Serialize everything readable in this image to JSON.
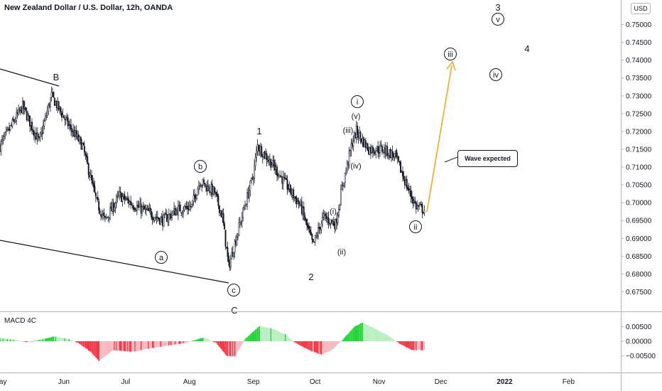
{
  "header": {
    "title": "New Zealand Dollar / U.S. Dollar, 12h, OANDA",
    "currency_badge": "USD"
  },
  "callout": {
    "text": "Wave expected"
  },
  "colors": {
    "candle": "#131722",
    "macd_up": "#22d43a",
    "macd_up_fade": "#b7f0bf",
    "macd_down": "#f23645",
    "macd_down_fade": "#f5b7bc",
    "arrow": "#f5a623",
    "axis_text": "#131722",
    "divider": "#b2b5be"
  },
  "chart_data": [
    {
      "type": "candlestick",
      "title": "New Zealand Dollar / U.S. Dollar, 12h, OANDA",
      "ylim": [
        0.6725,
        0.7525
      ],
      "y_ticks": [
        "0.75000",
        "0.74500",
        "0.74000",
        "0.73500",
        "0.73000",
        "0.72500",
        "0.72000",
        "0.71500",
        "0.71000",
        "0.70500",
        "0.70000",
        "0.69500",
        "0.69000",
        "0.68500",
        "0.68000",
        "0.67500"
      ],
      "x_ticks": [
        "May",
        "Jun",
        "Jul",
        "Aug",
        "Sep",
        "Oct",
        "Nov",
        "Dec",
        "2022",
        "Feb"
      ],
      "approx_close_path": [
        {
          "date": "2021-05-01",
          "close": 0.716
        },
        {
          "date": "2021-05-12",
          "close": 0.727
        },
        {
          "date": "2021-05-20",
          "close": 0.717
        },
        {
          "date": "2021-05-26",
          "close": 0.73
        },
        {
          "date": "2021-06-03",
          "close": 0.722
        },
        {
          "date": "2021-06-10",
          "close": 0.716
        },
        {
          "date": "2021-06-17",
          "close": 0.7
        },
        {
          "date": "2021-06-21",
          "close": 0.695
        },
        {
          "date": "2021-06-28",
          "close": 0.702
        },
        {
          "date": "2021-07-06",
          "close": 0.699
        },
        {
          "date": "2021-07-13",
          "close": 0.697
        },
        {
          "date": "2021-07-19",
          "close": 0.695
        },
        {
          "date": "2021-07-26",
          "close": 0.698
        },
        {
          "date": "2021-08-02",
          "close": 0.699
        },
        {
          "date": "2021-08-06",
          "close": 0.706
        },
        {
          "date": "2021-08-13",
          "close": 0.703
        },
        {
          "date": "2021-08-17",
          "close": 0.696
        },
        {
          "date": "2021-08-20",
          "close": 0.682
        },
        {
          "date": "2021-08-25",
          "close": 0.693
        },
        {
          "date": "2021-09-01",
          "close": 0.708
        },
        {
          "date": "2021-09-03",
          "close": 0.716
        },
        {
          "date": "2021-09-10",
          "close": 0.711
        },
        {
          "date": "2021-09-17",
          "close": 0.705
        },
        {
          "date": "2021-09-24",
          "close": 0.699
        },
        {
          "date": "2021-09-30",
          "close": 0.688
        },
        {
          "date": "2021-10-05",
          "close": 0.696
        },
        {
          "date": "2021-10-11",
          "close": 0.694
        },
        {
          "date": "2021-10-14",
          "close": 0.704
        },
        {
          "date": "2021-10-19",
          "close": 0.717
        },
        {
          "date": "2021-10-21",
          "close": 0.72
        },
        {
          "date": "2021-10-27",
          "close": 0.715
        },
        {
          "date": "2021-11-03",
          "close": 0.715
        },
        {
          "date": "2021-11-09",
          "close": 0.713
        },
        {
          "date": "2021-11-15",
          "close": 0.704
        },
        {
          "date": "2021-11-19",
          "close": 0.699
        },
        {
          "date": "2021-11-23",
          "close": 0.698
        }
      ]
    },
    {
      "type": "bar",
      "title": "MACD 4C",
      "ylim": [
        -0.0075,
        0.0075
      ],
      "y_ticks": [
        "0.00500",
        "0.00000",
        "−0.00500"
      ],
      "approx_histogram_path": [
        {
          "date": "2021-05-01",
          "value": 0.001
        },
        {
          "date": "2021-05-09",
          "value": 0.0004
        },
        {
          "date": "2021-05-14",
          "value": -0.0003
        },
        {
          "date": "2021-05-20",
          "value": 0.0004
        },
        {
          "date": "2021-05-27",
          "value": 0.0016
        },
        {
          "date": "2021-06-03",
          "value": 0.0008
        },
        {
          "date": "2021-06-08",
          "value": -0.0006
        },
        {
          "date": "2021-06-14",
          "value": -0.0036
        },
        {
          "date": "2021-06-18",
          "value": -0.0067
        },
        {
          "date": "2021-06-25",
          "value": -0.003
        },
        {
          "date": "2021-07-04",
          "value": -0.0036
        },
        {
          "date": "2021-07-13",
          "value": -0.0024
        },
        {
          "date": "2021-07-22",
          "value": -0.0014
        },
        {
          "date": "2021-07-30",
          "value": -0.0006
        },
        {
          "date": "2021-08-08",
          "value": 0.0013
        },
        {
          "date": "2021-08-14",
          "value": -0.0006
        },
        {
          "date": "2021-08-19",
          "value": -0.005
        },
        {
          "date": "2021-08-23",
          "value": -0.0052
        },
        {
          "date": "2021-08-28",
          "value": 0.0008
        },
        {
          "date": "2021-09-04",
          "value": 0.0052
        },
        {
          "date": "2021-09-10",
          "value": 0.0043
        },
        {
          "date": "2021-09-17",
          "value": 0.0022
        },
        {
          "date": "2021-09-21",
          "value": -0.0004
        },
        {
          "date": "2021-09-28",
          "value": -0.003
        },
        {
          "date": "2021-10-04",
          "value": -0.0046
        },
        {
          "date": "2021-10-09",
          "value": -0.003
        },
        {
          "date": "2021-10-15",
          "value": 0.001
        },
        {
          "date": "2021-10-20",
          "value": 0.005
        },
        {
          "date": "2021-10-24",
          "value": 0.0063
        },
        {
          "date": "2021-10-31",
          "value": 0.004
        },
        {
          "date": "2021-11-07",
          "value": 0.0012
        },
        {
          "date": "2021-11-11",
          "value": -0.0008
        },
        {
          "date": "2021-11-17",
          "value": -0.003
        },
        {
          "date": "2021-11-23",
          "value": -0.003
        }
      ]
    }
  ],
  "annotations": [
    {
      "label": "B",
      "circled": false
    },
    {
      "label": "a",
      "circled": true
    },
    {
      "label": "b",
      "circled": true
    },
    {
      "label": "c",
      "circled": true
    },
    {
      "label": "C",
      "circled": false
    },
    {
      "label": "1",
      "circled": false
    },
    {
      "label": "2",
      "circled": false
    },
    {
      "label": "(i)",
      "circled": false
    },
    {
      "label": "(ii)",
      "circled": false
    },
    {
      "label": "(iii)",
      "circled": false
    },
    {
      "label": "(iv)",
      "circled": false
    },
    {
      "label": "(v)",
      "circled": false
    },
    {
      "label": "i",
      "circled": true
    },
    {
      "label": "ii",
      "circled": true
    },
    {
      "label": "iii",
      "circled": true
    },
    {
      "label": "iv",
      "circled": true
    },
    {
      "label": "v",
      "circled": true
    },
    {
      "label": "3",
      "circled": false
    },
    {
      "label": "4",
      "circled": false
    }
  ]
}
